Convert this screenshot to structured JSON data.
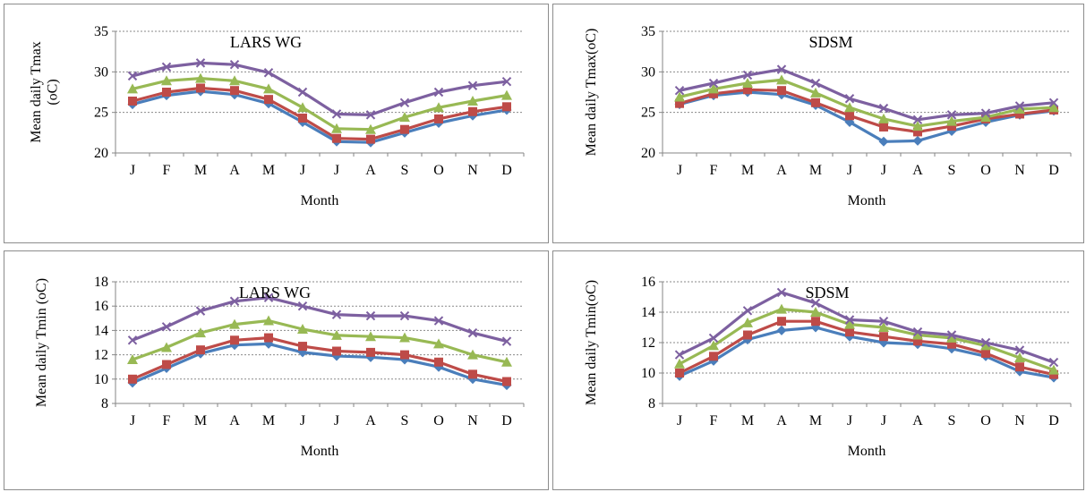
{
  "colors": {
    "series": [
      "#4a7ebb",
      "#be4b48",
      "#98b954",
      "#7d60a0"
    ],
    "grid": "#8a8a8a",
    "axis": "#868686"
  },
  "chart_data": [
    {
      "type": "line",
      "title": "LARS WG",
      "xlabel": "Month",
      "ylabel": "Mean daily Tmax (oC)",
      "categories": [
        "J",
        "F",
        "M",
        "A",
        "M",
        "J",
        "J",
        "A",
        "S",
        "O",
        "N",
        "D"
      ],
      "ylim": [
        20,
        35
      ],
      "yticks": [
        20,
        25,
        30,
        35
      ],
      "grid": true,
      "series": [
        {
          "marker": "diamond",
          "values": [
            26.0,
            27.1,
            27.6,
            27.2,
            26.1,
            23.8,
            21.4,
            21.3,
            22.5,
            23.7,
            24.6,
            25.3
          ]
        },
        {
          "marker": "square",
          "values": [
            26.4,
            27.5,
            28.0,
            27.7,
            26.6,
            24.3,
            21.8,
            21.7,
            22.9,
            24.2,
            25.1,
            25.7
          ]
        },
        {
          "marker": "triangle",
          "values": [
            27.9,
            28.9,
            29.2,
            28.9,
            27.9,
            25.6,
            23.0,
            22.9,
            24.4,
            25.6,
            26.4,
            27.1
          ]
        },
        {
          "marker": "x",
          "values": [
            29.5,
            30.6,
            31.1,
            30.9,
            29.9,
            27.5,
            24.8,
            24.7,
            26.2,
            27.5,
            28.3,
            28.8
          ]
        }
      ]
    },
    {
      "type": "line",
      "title": "SDSM",
      "xlabel": "Month",
      "ylabel": "Mean daily Tmax(oC)",
      "categories": [
        "J",
        "F",
        "M",
        "A",
        "M",
        "J",
        "J",
        "A",
        "S",
        "O",
        "N",
        "D"
      ],
      "ylim": [
        20,
        35
      ],
      "yticks": [
        20,
        25,
        30,
        35
      ],
      "grid": true,
      "series": [
        {
          "marker": "diamond",
          "values": [
            26.0,
            27.1,
            27.5,
            27.2,
            25.9,
            23.8,
            21.4,
            21.5,
            22.7,
            23.8,
            24.7,
            25.2
          ]
        },
        {
          "marker": "square",
          "values": [
            26.1,
            27.3,
            27.8,
            27.7,
            26.2,
            24.6,
            23.2,
            22.6,
            23.3,
            24.2,
            24.8,
            25.3
          ]
        },
        {
          "marker": "triangle",
          "values": [
            26.9,
            27.9,
            28.6,
            29.0,
            27.4,
            25.6,
            24.2,
            23.3,
            23.9,
            24.4,
            25.4,
            25.6
          ]
        },
        {
          "marker": "x",
          "values": [
            27.7,
            28.6,
            29.6,
            30.3,
            28.6,
            26.7,
            25.5,
            24.1,
            24.7,
            24.9,
            25.8,
            26.2
          ]
        }
      ]
    },
    {
      "type": "line",
      "title": "LARS WG",
      "xlabel": "Month",
      "ylabel": "Mean daily Tmin (oC)",
      "categories": [
        "J",
        "F",
        "M",
        "A",
        "M",
        "J",
        "J",
        "A",
        "S",
        "O",
        "N",
        "D"
      ],
      "ylim": [
        8,
        18
      ],
      "yticks": [
        8,
        10,
        12,
        14,
        16,
        18
      ],
      "grid": true,
      "series": [
        {
          "marker": "diamond",
          "values": [
            9.7,
            10.9,
            12.1,
            12.8,
            12.9,
            12.2,
            11.9,
            11.8,
            11.6,
            11.0,
            10.0,
            9.5
          ]
        },
        {
          "marker": "square",
          "values": [
            10.0,
            11.2,
            12.4,
            13.2,
            13.4,
            12.7,
            12.3,
            12.2,
            12.0,
            11.4,
            10.4,
            9.8
          ]
        },
        {
          "marker": "triangle",
          "values": [
            11.6,
            12.6,
            13.8,
            14.5,
            14.8,
            14.1,
            13.6,
            13.5,
            13.4,
            12.9,
            12.0,
            11.4
          ]
        },
        {
          "marker": "x",
          "values": [
            13.2,
            14.3,
            15.6,
            16.4,
            16.7,
            16.0,
            15.3,
            15.2,
            15.2,
            14.8,
            13.8,
            13.1
          ]
        }
      ]
    },
    {
      "type": "line",
      "title": "SDSM",
      "xlabel": "Month",
      "ylabel": "Mean daily Tmin(oC)",
      "categories": [
        "J",
        "F",
        "M",
        "A",
        "M",
        "J",
        "J",
        "A",
        "S",
        "O",
        "N",
        "D"
      ],
      "ylim": [
        8,
        16
      ],
      "yticks": [
        8,
        10,
        12,
        14,
        16
      ],
      "grid": true,
      "series": [
        {
          "marker": "diamond",
          "values": [
            9.8,
            10.8,
            12.2,
            12.8,
            13.0,
            12.4,
            12.0,
            11.9,
            11.6,
            11.1,
            10.1,
            9.7
          ]
        },
        {
          "marker": "square",
          "values": [
            10.0,
            11.1,
            12.5,
            13.4,
            13.4,
            12.7,
            12.4,
            12.1,
            11.9,
            11.3,
            10.4,
            9.9
          ]
        },
        {
          "marker": "triangle",
          "values": [
            10.6,
            11.8,
            13.3,
            14.2,
            14.0,
            13.2,
            13.0,
            12.5,
            12.3,
            11.8,
            11.0,
            10.2
          ]
        },
        {
          "marker": "x",
          "values": [
            11.2,
            12.3,
            14.1,
            15.3,
            14.6,
            13.5,
            13.4,
            12.7,
            12.5,
            12.0,
            11.5,
            10.7
          ]
        }
      ]
    }
  ]
}
